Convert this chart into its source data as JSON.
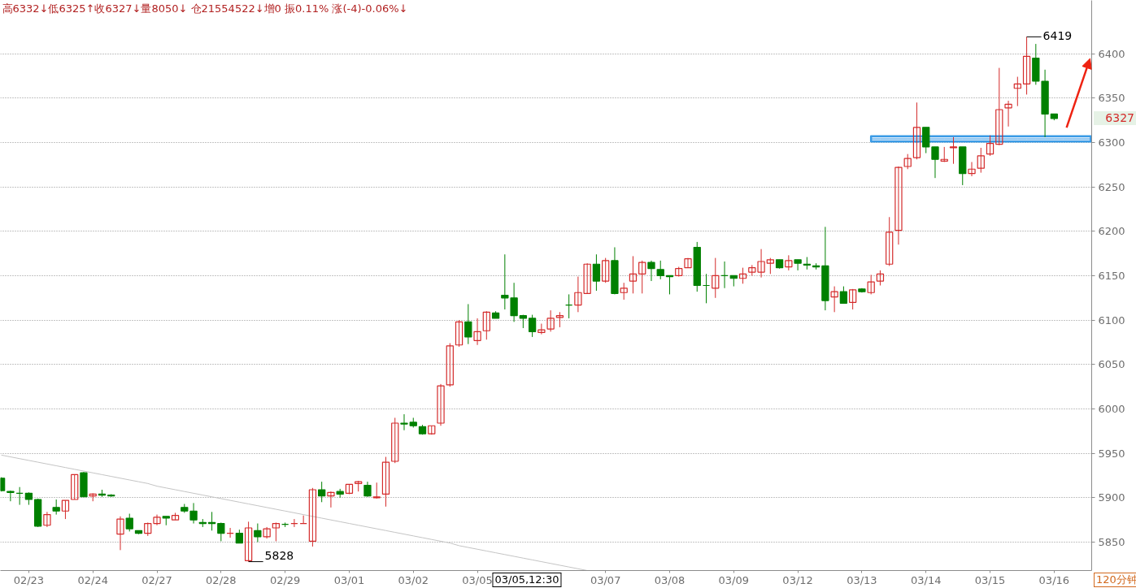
{
  "chart_data": {
    "type": "candlestick",
    "title": "高6332↓低6325↑收6327↓量8050↓ 仓21554522↓增0 振0.11% 涨(-4)-0.06%↓",
    "categories": [
      null,
      null,
      null,
      "02/23",
      null,
      null,
      null,
      null,
      null,
      null,
      "02/24",
      null,
      null,
      null,
      null,
      null,
      null,
      "02/27",
      null,
      null,
      null,
      null,
      null,
      null,
      "02/28",
      null,
      null,
      null,
      null,
      null,
      null,
      "02/29",
      null,
      null,
      null,
      null,
      null,
      null,
      "03/01",
      null,
      null,
      null,
      null,
      null,
      null,
      "03/02",
      null,
      null,
      null,
      null,
      null,
      null,
      "03/05",
      null,
      null,
      null,
      null,
      null,
      null,
      null,
      null,
      null,
      null,
      null,
      null,
      null,
      "03/07",
      null,
      null,
      null,
      null,
      null,
      null,
      "03/08",
      null,
      null,
      null,
      null,
      null,
      null,
      "03/09",
      null,
      null,
      null,
      null,
      null,
      null,
      "03/12",
      null,
      null,
      null,
      null,
      null,
      null,
      "03/13",
      null,
      null,
      null,
      null,
      null,
      null,
      "03/14",
      null,
      null,
      null,
      null,
      null,
      null,
      "03/15",
      null,
      null,
      null,
      null,
      null,
      null,
      "03/16",
      null,
      null,
      null,
      null
    ],
    "ohlc": [
      [
        5922,
        5923,
        5907,
        5908
      ],
      [
        5907,
        5908,
        5896,
        5906
      ],
      [
        5905,
        5912,
        5892,
        5905
      ],
      [
        5905,
        5906,
        5892,
        5898
      ],
      [
        5898,
        5899,
        5867,
        5868
      ],
      [
        5869,
        5884,
        5867,
        5881
      ],
      [
        5889,
        5898,
        5881,
        5885
      ],
      [
        5885,
        5897,
        5876,
        5897
      ],
      [
        5898,
        5926,
        5898,
        5926
      ],
      [
        5928,
        5929,
        5901,
        5901
      ],
      [
        5902,
        5905,
        5896,
        5904
      ],
      [
        5904,
        5909,
        5901,
        5903
      ],
      [
        5903,
        5904,
        5901,
        5902
      ],
      [
        5859,
        5879,
        5841,
        5876
      ],
      [
        5877,
        5882,
        5862,
        5865
      ],
      [
        5863,
        5863,
        5859,
        5860
      ],
      [
        5860,
        5872,
        5857,
        5871
      ],
      [
        5871,
        5881,
        5869,
        5878
      ],
      [
        5879,
        5879,
        5869,
        5877
      ],
      [
        5875,
        5883,
        5875,
        5880
      ],
      [
        5889,
        5893,
        5883,
        5885
      ],
      [
        5885,
        5894,
        5871,
        5875
      ],
      [
        5872,
        5876,
        5867,
        5871
      ],
      [
        5872,
        5884,
        5863,
        5871
      ],
      [
        5871,
        5872,
        5851,
        5860
      ],
      [
        5860,
        5866,
        5855,
        5860
      ],
      [
        5860,
        5864,
        5849,
        5849
      ],
      [
        5829,
        5873,
        5828,
        5866
      ],
      [
        5863,
        5871,
        5850,
        5856
      ],
      [
        5856,
        5867,
        5854,
        5865
      ],
      [
        5866,
        5872,
        5851,
        5871
      ],
      [
        5870,
        5872,
        5867,
        5870
      ],
      [
        5871,
        5876,
        5867,
        5871
      ],
      [
        5871,
        5880,
        5871,
        5871
      ],
      [
        5851,
        5911,
        5845,
        5909
      ],
      [
        5909,
        5918,
        5895,
        5902
      ],
      [
        5902,
        5907,
        5889,
        5906
      ],
      [
        5907,
        5910,
        5900,
        5904
      ],
      [
        5905,
        5915,
        5904,
        5915
      ],
      [
        5916,
        5919,
        5907,
        5918
      ],
      [
        5914,
        5918,
        5901,
        5902
      ],
      [
        5900,
        5917,
        5899,
        5901
      ],
      [
        5904,
        5946,
        5890,
        5940
      ],
      [
        5941,
        5990,
        5939,
        5984
      ],
      [
        5984,
        5994,
        5976,
        5983
      ],
      [
        5985,
        5990,
        5979,
        5981
      ],
      [
        5980,
        5982,
        5971,
        5972
      ],
      [
        5972,
        5981,
        5971,
        5981
      ],
      [
        5984,
        6028,
        5981,
        6026
      ],
      [
        6027,
        6074,
        6025,
        6071
      ],
      [
        6072,
        6100,
        6070,
        6098
      ],
      [
        6098,
        6118,
        6073,
        6081
      ],
      [
        6077,
        6102,
        6072,
        6087
      ],
      [
        6088,
        6110,
        6078,
        6109
      ],
      [
        6108,
        6110,
        6102,
        6102
      ],
      [
        6128,
        6174,
        6112,
        6125
      ],
      [
        6125,
        6142,
        6098,
        6105
      ],
      [
        6105,
        6106,
        6091,
        6102
      ],
      [
        6102,
        6106,
        6081,
        6087
      ],
      [
        6086,
        6096,
        6084,
        6089
      ],
      [
        6090,
        6111,
        6087,
        6102
      ],
      [
        6103,
        6109,
        6092,
        6105
      ],
      [
        6117,
        6129,
        6102,
        6117
      ],
      [
        6117,
        6149,
        6109,
        6131
      ],
      [
        6130,
        6164,
        6130,
        6163
      ],
      [
        6163,
        6174,
        6133,
        6144
      ],
      [
        6144,
        6170,
        6142,
        6167
      ],
      [
        6167,
        6182,
        6129,
        6130
      ],
      [
        6131,
        6142,
        6123,
        6136
      ],
      [
        6144,
        6172,
        6130,
        6152
      ],
      [
        6152,
        6167,
        6130,
        6165
      ],
      [
        6165,
        6167,
        6144,
        6158
      ],
      [
        6157,
        6167,
        6146,
        6150
      ],
      [
        6150,
        6150,
        6129,
        6149
      ],
      [
        6150,
        6160,
        6149,
        6158
      ],
      [
        6159,
        6170,
        6159,
        6169
      ],
      [
        6182,
        6188,
        6132,
        6139
      ],
      [
        6139,
        6152,
        6119,
        6139
      ],
      [
        6136,
        6170,
        6125,
        6150
      ],
      [
        6150,
        6166,
        6136,
        6150
      ],
      [
        6150,
        6150,
        6138,
        6147
      ],
      [
        6147,
        6159,
        6141,
        6152
      ],
      [
        6154,
        6162,
        6150,
        6159
      ],
      [
        6154,
        6180,
        6148,
        6166
      ],
      [
        6164,
        6170,
        6152,
        6168
      ],
      [
        6168,
        6168,
        6158,
        6159
      ],
      [
        6160,
        6173,
        6156,
        6167
      ],
      [
        6168,
        6168,
        6156,
        6164
      ],
      [
        6163,
        6171,
        6157,
        6162
      ],
      [
        6161,
        6164,
        6157,
        6160
      ],
      [
        6161,
        6205,
        6111,
        6122
      ],
      [
        6126,
        6138,
        6109,
        6132
      ],
      [
        6132,
        6138,
        6119,
        6119
      ],
      [
        6120,
        6135,
        6112,
        6134
      ],
      [
        6135,
        6136,
        6131,
        6132
      ],
      [
        6131,
        6151,
        6129,
        6143
      ],
      [
        6144,
        6156,
        6139,
        6152
      ],
      [
        6163,
        6216,
        6161,
        6199
      ],
      [
        6201,
        6273,
        6185,
        6272
      ],
      [
        6273,
        6287,
        6270,
        6282
      ],
      [
        6283,
        6345,
        6281,
        6317
      ],
      [
        6317,
        6317,
        6288,
        6295
      ],
      [
        6295,
        6295,
        6260,
        6281
      ],
      [
        6279,
        6295,
        6278,
        6281
      ],
      [
        6294,
        6306,
        6276,
        6295
      ],
      [
        6295,
        6295,
        6252,
        6265
      ],
      [
        6265,
        6278,
        6262,
        6270
      ],
      [
        6271,
        6294,
        6266,
        6285
      ],
      [
        6287,
        6308,
        6285,
        6299
      ],
      [
        6298,
        6384,
        6297,
        6337
      ],
      [
        6339,
        6347,
        6318,
        6343
      ],
      [
        6361,
        6374,
        6341,
        6366
      ],
      [
        6366,
        6419,
        6354,
        6397
      ],
      [
        6395,
        6411,
        6365,
        6369
      ],
      [
        6369,
        6382,
        6306,
        6332
      ],
      [
        6332,
        6332,
        6325,
        6327
      ],
      null,
      null,
      null,
      null
    ],
    "colors": [
      "#008000",
      "#008000",
      "#008000",
      "#008000",
      "#008000",
      "#d42a2a",
      "#008000",
      "#d42a2a",
      "#d42a2a",
      "#008000",
      "#d42a2a",
      "#008000",
      "#008000",
      "#d42a2a",
      "#008000",
      "#008000",
      "#d42a2a",
      "#d42a2a",
      "#008000",
      "#d42a2a",
      "#008000",
      "#008000",
      "#008000",
      "#008000",
      "#008000",
      "#d42a2a",
      "#008000",
      "#d42a2a",
      "#008000",
      "#d42a2a",
      "#d42a2a",
      "#008000",
      "#d42a2a",
      "#d42a2a",
      "#d42a2a",
      "#008000",
      "#d42a2a",
      "#008000",
      "#d42a2a",
      "#d42a2a",
      "#008000",
      "#d42a2a",
      "#d42a2a",
      "#d42a2a",
      "#008000",
      "#008000",
      "#008000",
      "#d42a2a",
      "#d42a2a",
      "#d42a2a",
      "#d42a2a",
      "#008000",
      "#d42a2a",
      "#d42a2a",
      "#008000",
      "#008000",
      "#008000",
      "#008000",
      "#008000",
      "#d42a2a",
      "#d42a2a",
      "#d42a2a",
      "#008000",
      "#d42a2a",
      "#d42a2a",
      "#008000",
      "#d42a2a",
      "#008000",
      "#d42a2a",
      "#d42a2a",
      "#d42a2a",
      "#008000",
      "#008000",
      "#008000",
      "#d42a2a",
      "#d42a2a",
      "#008000",
      "#008000",
      "#d42a2a",
      "#008000",
      "#008000",
      "#d42a2a",
      "#d42a2a",
      "#d42a2a",
      "#d42a2a",
      "#008000",
      "#d42a2a",
      "#008000",
      "#008000",
      "#008000",
      "#008000",
      "#d42a2a",
      "#008000",
      "#d42a2a",
      "#008000",
      "#d42a2a",
      "#d42a2a",
      "#d42a2a",
      "#d42a2a",
      "#d42a2a",
      "#d42a2a",
      "#008000",
      "#008000",
      "#d42a2a",
      "#d42a2a",
      "#008000",
      "#d42a2a",
      "#d42a2a",
      "#d42a2a",
      "#d42a2a",
      "#d42a2a",
      "#d42a2a",
      "#d42a2a",
      "#008000",
      "#008000",
      "#008000",
      null,
      null,
      null,
      null
    ],
    "series": [
      {
        "type": "line",
        "color": "#c4c4c4",
        "values": [
          5948,
          5946,
          5944,
          5942,
          5940,
          5938,
          5936,
          5934,
          5932,
          5930,
          5928,
          5926,
          5924,
          5922,
          5920,
          5918,
          5916,
          5913,
          5911,
          5909,
          5907,
          5905,
          5903,
          5901,
          5899,
          5897,
          5895,
          5893,
          5891,
          5889,
          5887,
          5885,
          5883,
          5881,
          5879,
          5877,
          5875,
          5873,
          5871,
          5869,
          5867,
          5865,
          5863,
          5861,
          5859,
          5857,
          5855,
          5853,
          5851,
          5849,
          5846,
          5844,
          5842,
          5840,
          5838,
          5836,
          5834,
          5832,
          5830,
          5828,
          5826,
          5824,
          5822,
          5820,
          5818,
          null,
          null,
          null,
          null,
          null,
          null,
          null,
          null,
          null,
          null,
          null,
          null,
          null,
          null,
          null,
          null,
          null,
          null,
          null,
          null,
          null,
          null,
          null,
          null,
          null,
          null,
          null,
          null,
          null,
          null,
          null,
          null,
          null,
          null,
          null,
          null,
          null,
          null,
          null,
          null,
          null,
          null,
          null,
          null,
          null,
          null,
          null,
          null,
          null,
          null,
          null,
          null,
          null,
          null,
          null
        ]
      },
      {
        "type": "line",
        "color": "#3a9be6",
        "values": [
          null,
          null,
          null,
          null,
          null,
          null,
          null,
          null,
          null,
          null,
          null,
          null,
          null,
          null,
          null,
          null,
          null,
          null,
          null,
          null,
          null,
          null,
          null,
          null,
          null,
          null,
          null,
          null,
          null,
          null,
          null,
          null,
          null,
          null,
          null,
          null,
          null,
          null,
          null,
          null,
          null,
          null,
          null,
          null,
          null,
          null,
          null,
          null,
          null,
          null,
          null,
          null,
          null,
          null,
          null,
          null,
          null,
          null,
          null,
          null,
          null,
          null,
          null,
          null,
          null,
          null,
          null,
          null,
          null,
          null,
          null,
          null,
          null,
          null,
          null,
          null,
          null,
          null,
          null,
          null,
          null,
          null,
          null,
          null,
          null,
          null,
          null,
          null,
          null,
          null,
          null,
          null,
          null,
          null,
          null,
          6304,
          6304,
          6304,
          6304,
          6304,
          6304,
          6304,
          6304,
          6304,
          6304,
          6304,
          6304,
          6304,
          6304,
          6304,
          6304,
          6304,
          6304,
          6304,
          6304,
          6304,
          6304,
          6304,
          6304,
          6304
        ],
        "lower": [
          null,
          null,
          null,
          null,
          null,
          null,
          null,
          null,
          null,
          null,
          null,
          null,
          null,
          null,
          null,
          null,
          null,
          null,
          null,
          null,
          null,
          null,
          null,
          null,
          null,
          null,
          null,
          null,
          null,
          null,
          null,
          null,
          null,
          null,
          null,
          null,
          null,
          null,
          null,
          null,
          null,
          null,
          null,
          null,
          null,
          null,
          null,
          null,
          null,
          null,
          null,
          null,
          null,
          null,
          null,
          null,
          null,
          null,
          null,
          null,
          null,
          null,
          null,
          null,
          null,
          null,
          null,
          null,
          null,
          null,
          null,
          null,
          null,
          null,
          null,
          null,
          null,
          null,
          null,
          null,
          null,
          null,
          null,
          null,
          null,
          null,
          null,
          null,
          null,
          null,
          null,
          null,
          null,
          null,
          null,
          6301,
          6301,
          6301,
          6301,
          6301,
          6301,
          6301,
          6301,
          6301,
          6301,
          6301,
          6301,
          6301,
          6301,
          6301,
          6301,
          6301,
          6301,
          6301,
          6301,
          6301,
          6301,
          6301,
          6301,
          6301
        ],
        "upper": [
          null,
          null,
          null,
          null,
          null,
          null,
          null,
          null,
          null,
          null,
          null,
          null,
          null,
          null,
          null,
          null,
          null,
          null,
          null,
          null,
          null,
          null,
          null,
          null,
          null,
          null,
          null,
          null,
          null,
          null,
          null,
          null,
          null,
          null,
          null,
          null,
          null,
          null,
          null,
          null,
          null,
          null,
          null,
          null,
          null,
          null,
          null,
          null,
          null,
          null,
          null,
          null,
          null,
          null,
          null,
          null,
          null,
          null,
          null,
          null,
          null,
          null,
          null,
          null,
          null,
          null,
          null,
          null,
          null,
          null,
          null,
          null,
          null,
          null,
          null,
          null,
          null,
          null,
          null,
          null,
          null,
          null,
          null,
          null,
          null,
          null,
          null,
          null,
          null,
          null,
          null,
          null,
          null,
          null,
          null,
          6307,
          6307,
          6307,
          6307,
          6307,
          6307,
          6307,
          6307,
          6307,
          6307,
          6307,
          6307,
          6307,
          6307,
          6307,
          6307,
          6307,
          6307,
          6307,
          6307,
          6307,
          6307,
          6307,
          6307,
          6307
        ]
      }
    ],
    "ylim": [
      5818,
      6460
    ],
    "yticks": [
      5850,
      5900,
      5950,
      6000,
      6050,
      6100,
      6150,
      6200,
      6250,
      6300,
      6350,
      6400
    ],
    "grid": "y",
    "annotations": [
      "6419",
      "5828",
      "6327",
      "03/05,12:30",
      "120分钟"
    ]
  }
}
